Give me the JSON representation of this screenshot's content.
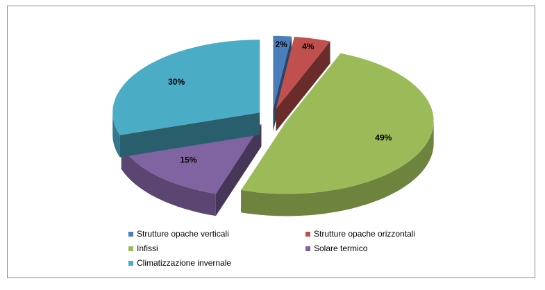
{
  "chart_data": {
    "type": "pie3d",
    "categories": [
      "Strutture opache verticali",
      "Strutture opache orizzontali",
      "Infissi",
      "Solare termico",
      "Climatizzazione invernale"
    ],
    "values": [
      2,
      4,
      49,
      15,
      30
    ],
    "value_labels": [
      "2%",
      "4%",
      "49%",
      "15%",
      "30%"
    ],
    "colors": [
      "#4a7ebb",
      "#c0504d",
      "#9bbb59",
      "#8064a2",
      "#4bacc6"
    ],
    "legend": "bottom"
  }
}
